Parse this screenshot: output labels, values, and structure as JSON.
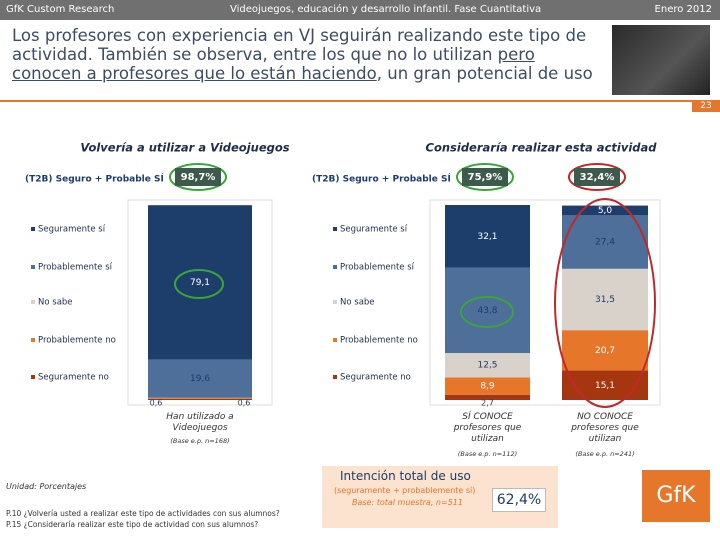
{
  "header": {
    "left": "GfK Custom Research",
    "center": "Videojuegos, educación y desarrollo infantil. Fase Cuantitativa",
    "right": "Enero 2012"
  },
  "title": {
    "parts": [
      "Los profesores con experiencia en VJ seguirán realizando este tipo de actividad. También se observa, entre los que no lo utilizan ",
      "pero conocen a profesores que lo están haciendo",
      ", un gran potencial de uso"
    ]
  },
  "page_number": "23",
  "chart_data": [
    {
      "type": "bar",
      "stacked": true,
      "title": "Volvería a utilizar a Videojuegos",
      "t2b": {
        "label": "(T2B) Seguro + Probable SÍ",
        "values": [
          98.7
        ],
        "value_labels": [
          "98,7%"
        ]
      },
      "categories": [
        "Han utilizado a Videojuegos"
      ],
      "bases": [
        "(Base e.p. n=168)"
      ],
      "ylim": [
        0,
        100
      ],
      "series": [
        {
          "name": "Seguramente sí",
          "color": "#1d3d6b",
          "values": [
            79.1
          ],
          "value_labels": [
            "79,1"
          ]
        },
        {
          "name": "Probablemente sí",
          "color": "#4d6f99",
          "values": [
            19.6
          ],
          "value_labels": [
            "19,6"
          ]
        },
        {
          "name": "No sabe",
          "color": "#d9d2ca",
          "values": [
            null
          ],
          "value_labels": [
            null
          ]
        },
        {
          "name": "Probablemente no",
          "color": "#e5762a",
          "values": [
            0.6
          ],
          "value_labels": [
            "0,6"
          ]
        },
        {
          "name": "Seguramente no",
          "color": "#a5360f",
          "values": [
            0.6
          ],
          "value_labels": [
            "0,6"
          ]
        }
      ]
    },
    {
      "type": "bar",
      "stacked": true,
      "title": "Consideraría realizar esta actividad",
      "t2b": {
        "label": "(T2B) Seguro + Probable SÍ",
        "values": [
          75.9,
          32.4
        ],
        "value_labels": [
          "75,9%",
          "32,4%"
        ]
      },
      "categories": [
        "SÍ CONOCE profesores que utilizan",
        "NO CONOCE profesores que utilizan"
      ],
      "bases": [
        "(Base e.p. n=112)",
        "(Base e.p. n=241)"
      ],
      "ylim": [
        0,
        100
      ],
      "series": [
        {
          "name": "Seguramente sí",
          "color": "#1d3d6b",
          "values": [
            32.1,
            5.0
          ],
          "value_labels": [
            "32,1",
            "5,0"
          ]
        },
        {
          "name": "Probablemente sí",
          "color": "#4d6f99",
          "values": [
            43.8,
            27.4
          ],
          "value_labels": [
            "43,8",
            "27,4"
          ]
        },
        {
          "name": "No sabe",
          "color": "#d9d2ca",
          "values": [
            12.5,
            31.5
          ],
          "value_labels": [
            "12,5",
            "31,5"
          ]
        },
        {
          "name": "Probablemente no",
          "color": "#e5762a",
          "values": [
            8.9,
            20.7
          ],
          "value_labels": [
            "8,9",
            "20,7"
          ]
        },
        {
          "name": "Seguramente no",
          "color": "#a5360f",
          "values": [
            2.7,
            15.1
          ],
          "value_labels": [
            "2,7",
            "15,1"
          ]
        }
      ]
    }
  ],
  "footer": {
    "unit": "Unidad: Porcentajes",
    "questions": [
      "P.10 ¿Volvería usted a realizar este tipo de actividades con sus alumnos?",
      "P.15 ¿Consideraría realizar este tipo de actividad con sus alumnos?"
    ],
    "total_title": "Intención total de uso",
    "total_sub": "(seguramente + probablemente sí)",
    "total_base": "Base: total muestra, n=511",
    "total_value": 62.4,
    "total_label": "62,4%",
    "logo": "GfK"
  }
}
